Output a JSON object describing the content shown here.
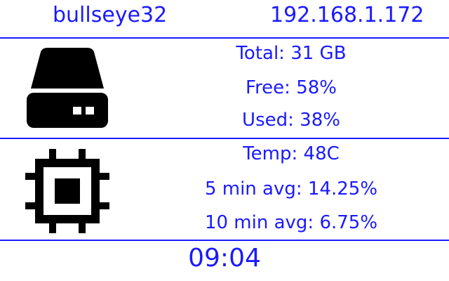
{
  "header": {
    "hostname": "bullseye32",
    "ip_address": "192.168.1.172"
  },
  "storage": {
    "icon": "hard-drive-icon",
    "total_label": "Total: 31 GB",
    "free_label": "Free: 58%",
    "used_label": "Used: 38%"
  },
  "cpu": {
    "icon": "cpu-chip-icon",
    "temp_label": "Temp: 48C",
    "avg5_label": "5 min avg: 14.25%",
    "avg10_label": "10 min avg: 6.75%"
  },
  "footer": {
    "time": "09:04"
  },
  "colors": {
    "text": "#1a1aff",
    "icon": "#000000",
    "background": "#ffffff"
  }
}
